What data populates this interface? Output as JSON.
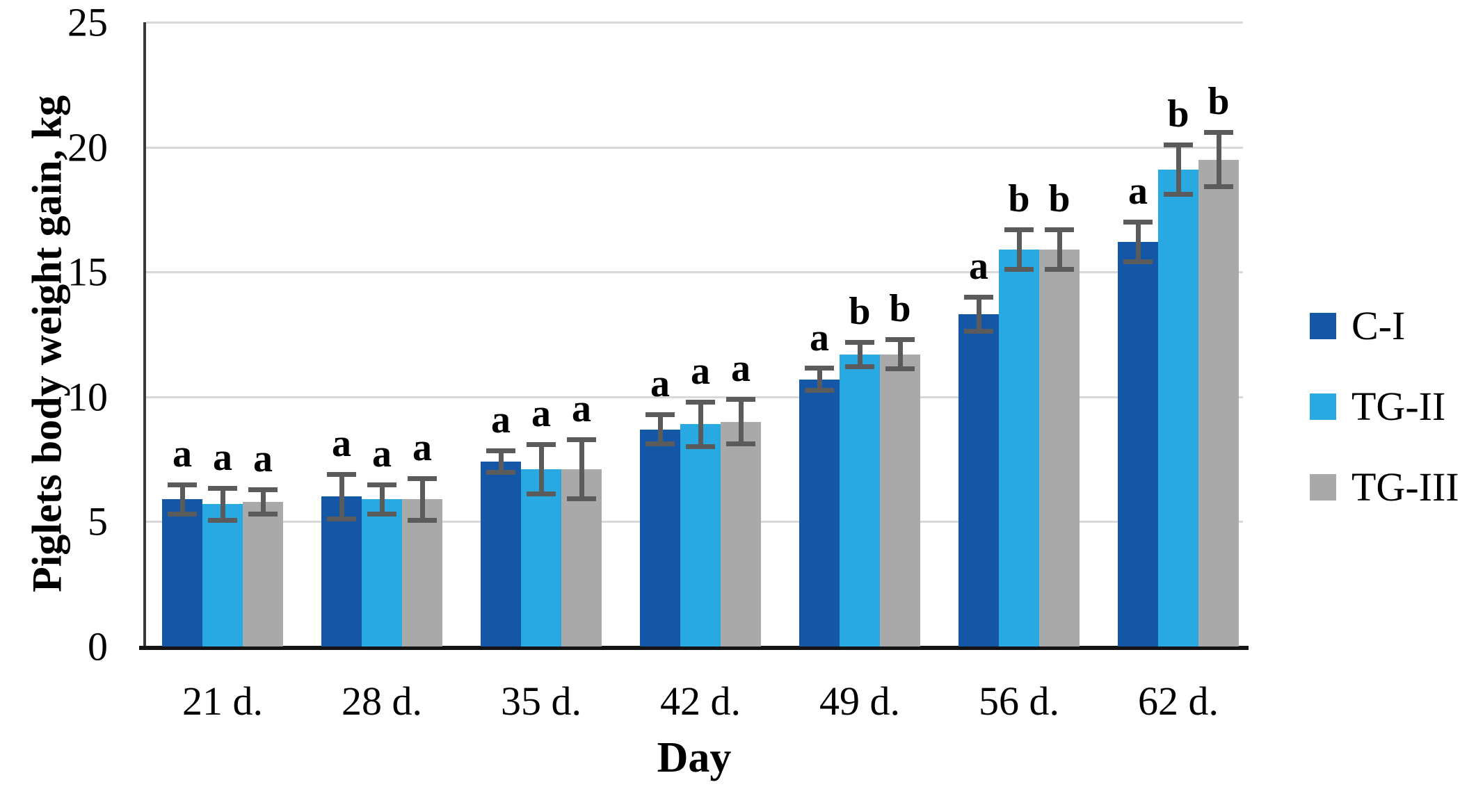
{
  "chart_data": {
    "type": "bar",
    "title": "",
    "xlabel": "Day",
    "ylabel": "Piglets body weight gain, kg",
    "ylim": [
      0,
      25
    ],
    "yticks": [
      0,
      5,
      10,
      15,
      20,
      25
    ],
    "grid": true,
    "legend_position": "right",
    "categories": [
      "21 d.",
      "28 d.",
      "35 d.",
      "42 d.",
      "49 d.",
      "56 d.",
      "62 d."
    ],
    "series": [
      {
        "name": "C-I",
        "color": "#1457a6",
        "values": [
          5.9,
          6.0,
          7.4,
          8.7,
          10.7,
          13.3,
          16.2
        ],
        "errors": [
          0.6,
          0.9,
          0.45,
          0.6,
          0.45,
          0.7,
          0.8
        ],
        "letters": [
          "a",
          "a",
          "a",
          "a",
          "a",
          "a",
          "a"
        ]
      },
      {
        "name": "TG-II",
        "color": "#29a9e1",
        "values": [
          5.7,
          5.9,
          7.1,
          8.9,
          11.7,
          15.9,
          19.1
        ],
        "errors": [
          0.65,
          0.6,
          1.0,
          0.9,
          0.5,
          0.8,
          1.0
        ],
        "letters": [
          "a",
          "a",
          "a",
          "a",
          "b",
          "b",
          "b"
        ]
      },
      {
        "name": "TG-III",
        "color": "#a9a9a9",
        "values": [
          5.8,
          5.9,
          7.1,
          9.0,
          11.7,
          15.9,
          19.5
        ],
        "errors": [
          0.5,
          0.85,
          1.2,
          0.9,
          0.6,
          0.8,
          1.1
        ],
        "letters": [
          "a",
          "a",
          "a",
          "a",
          "b",
          "b",
          "b"
        ]
      }
    ],
    "colors": {
      "error_bar": "#5b5b5b",
      "gridline": "#d8d8d8",
      "axis": "#141414",
      "text": "#000000"
    }
  }
}
